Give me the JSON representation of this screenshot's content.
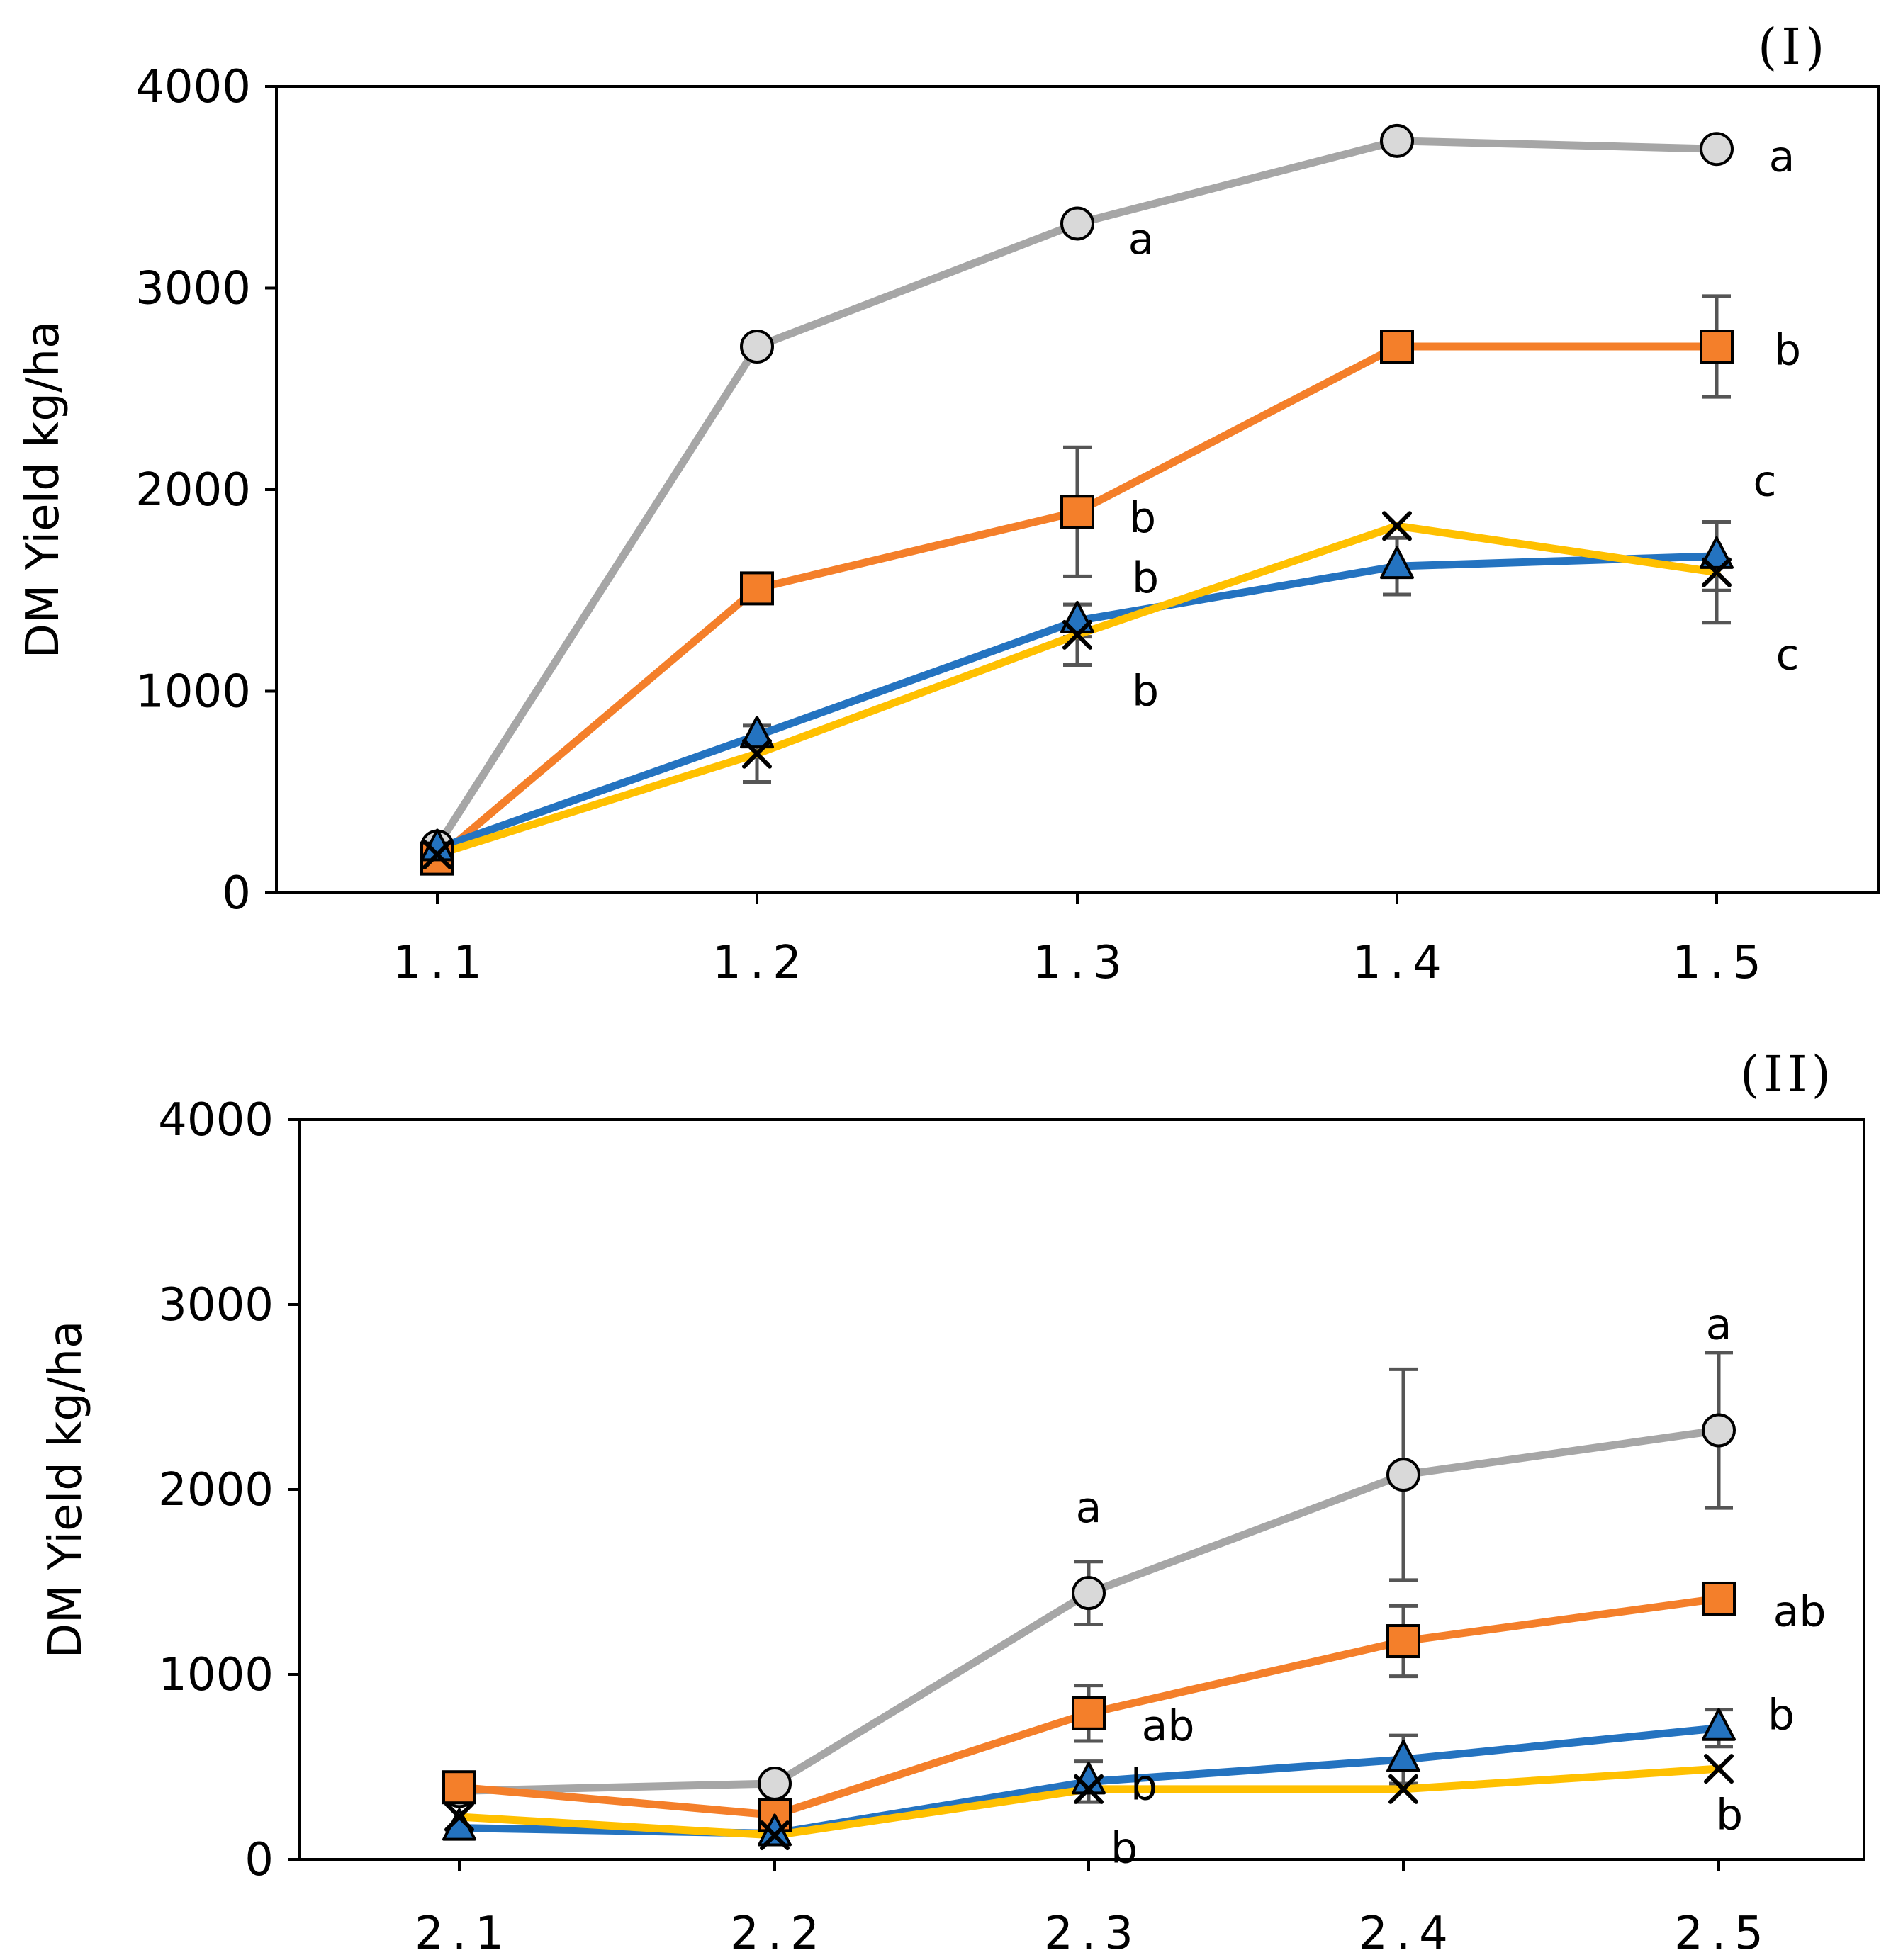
{
  "chart_data": [
    {
      "type": "line",
      "panel_label": "(I)",
      "ylabel": "DM Yield kg/ha",
      "xlabel": "",
      "ylim": [
        0,
        4000
      ],
      "yticks": [
        "0",
        "1000",
        "2000",
        "3000",
        "4000"
      ],
      "categories": [
        "1.1",
        "1.2",
        "1.3",
        "1.4",
        "1.5"
      ],
      "series": [
        {
          "name": "circle-series",
          "marker": "circle",
          "color": "#A6A6A6",
          "marker_fill": "#D9D9D9",
          "values": [
            230,
            2710,
            3320,
            3730,
            3690
          ],
          "errors": [
            null,
            null,
            null,
            null,
            null
          ]
        },
        {
          "name": "square-series",
          "marker": "square",
          "color": "#F47F2A",
          "marker_fill": "#F47F2A",
          "values": [
            170,
            1510,
            1890,
            2710,
            2710
          ],
          "errors": [
            null,
            null,
            320,
            null,
            250
          ]
        },
        {
          "name": "triangle-series",
          "marker": "triangle",
          "color": "#2473C0",
          "marker_fill": "#2473C0",
          "values": [
            220,
            780,
            1350,
            1620,
            1670
          ],
          "errors": [
            null,
            null,
            80,
            140,
            170
          ]
        },
        {
          "name": "cross-series",
          "marker": "x",
          "color": "#FFC000",
          "marker_fill": "#FFC000",
          "values": [
            190,
            690,
            1280,
            1820,
            1590
          ],
          "errors": [
            null,
            140,
            150,
            null,
            250
          ]
        }
      ],
      "annotations": [
        {
          "text": "a",
          "x": "1.3",
          "y": 3240
        },
        {
          "text": "a",
          "x": "1.5",
          "y": 3650
        },
        {
          "text": "b",
          "x": "1.3",
          "y": 1860
        },
        {
          "text": "b",
          "x": "1.5",
          "y": 2690
        },
        {
          "text": "b",
          "x": "1.3",
          "y": 1560
        },
        {
          "text": "b",
          "x": "1.3",
          "y": 1000
        },
        {
          "text": "c",
          "x": "1.5",
          "y": 2040
        },
        {
          "text": "c",
          "x": "1.5",
          "y": 1180
        }
      ]
    },
    {
      "type": "line",
      "panel_label": "(II)",
      "ylabel": "DM Yield kg/ha",
      "xlabel": "",
      "ylim": [
        0,
        4000
      ],
      "yticks": [
        "0",
        "1000",
        "2000",
        "3000",
        "4000"
      ],
      "categories": [
        "2.1",
        "2.2",
        "2.3",
        "2.4",
        "2.5"
      ],
      "series": [
        {
          "name": "circle-series",
          "marker": "circle",
          "color": "#A6A6A6",
          "marker_fill": "#D9D9D9",
          "values": [
            370,
            410,
            1440,
            2080,
            2320
          ],
          "errors": [
            null,
            null,
            170,
            570,
            420
          ]
        },
        {
          "name": "square-series",
          "marker": "square",
          "color": "#F47F2A",
          "marker_fill": "#F47F2A",
          "values": [
            390,
            240,
            790,
            1180,
            1410
          ],
          "errors": [
            null,
            null,
            150,
            190,
            null
          ]
        },
        {
          "name": "triangle-series",
          "marker": "triangle",
          "color": "#2473C0",
          "marker_fill": "#2473C0",
          "values": [
            170,
            140,
            420,
            540,
            710
          ],
          "errors": [
            null,
            null,
            110,
            130,
            100
          ]
        },
        {
          "name": "cross-series",
          "marker": "x",
          "color": "#FFC000",
          "marker_fill": "#FFC000",
          "values": [
            230,
            130,
            380,
            380,
            490
          ],
          "errors": [
            null,
            null,
            null,
            null,
            null
          ]
        }
      ],
      "annotations": [
        {
          "text": "a",
          "x": "2.3",
          "y": 1900
        },
        {
          "text": "a",
          "x": "2.5",
          "y": 2890
        },
        {
          "text": "ab",
          "x": "2.3",
          "y": 720
        },
        {
          "text": "ab",
          "x": "2.5",
          "y": 1340
        },
        {
          "text": "b",
          "x": "2.3",
          "y": 400
        },
        {
          "text": "b",
          "x": "2.3",
          "y": 60
        },
        {
          "text": "b",
          "x": "2.5",
          "y": 780
        },
        {
          "text": "b",
          "x": "2.5",
          "y": 240
        }
      ]
    }
  ]
}
